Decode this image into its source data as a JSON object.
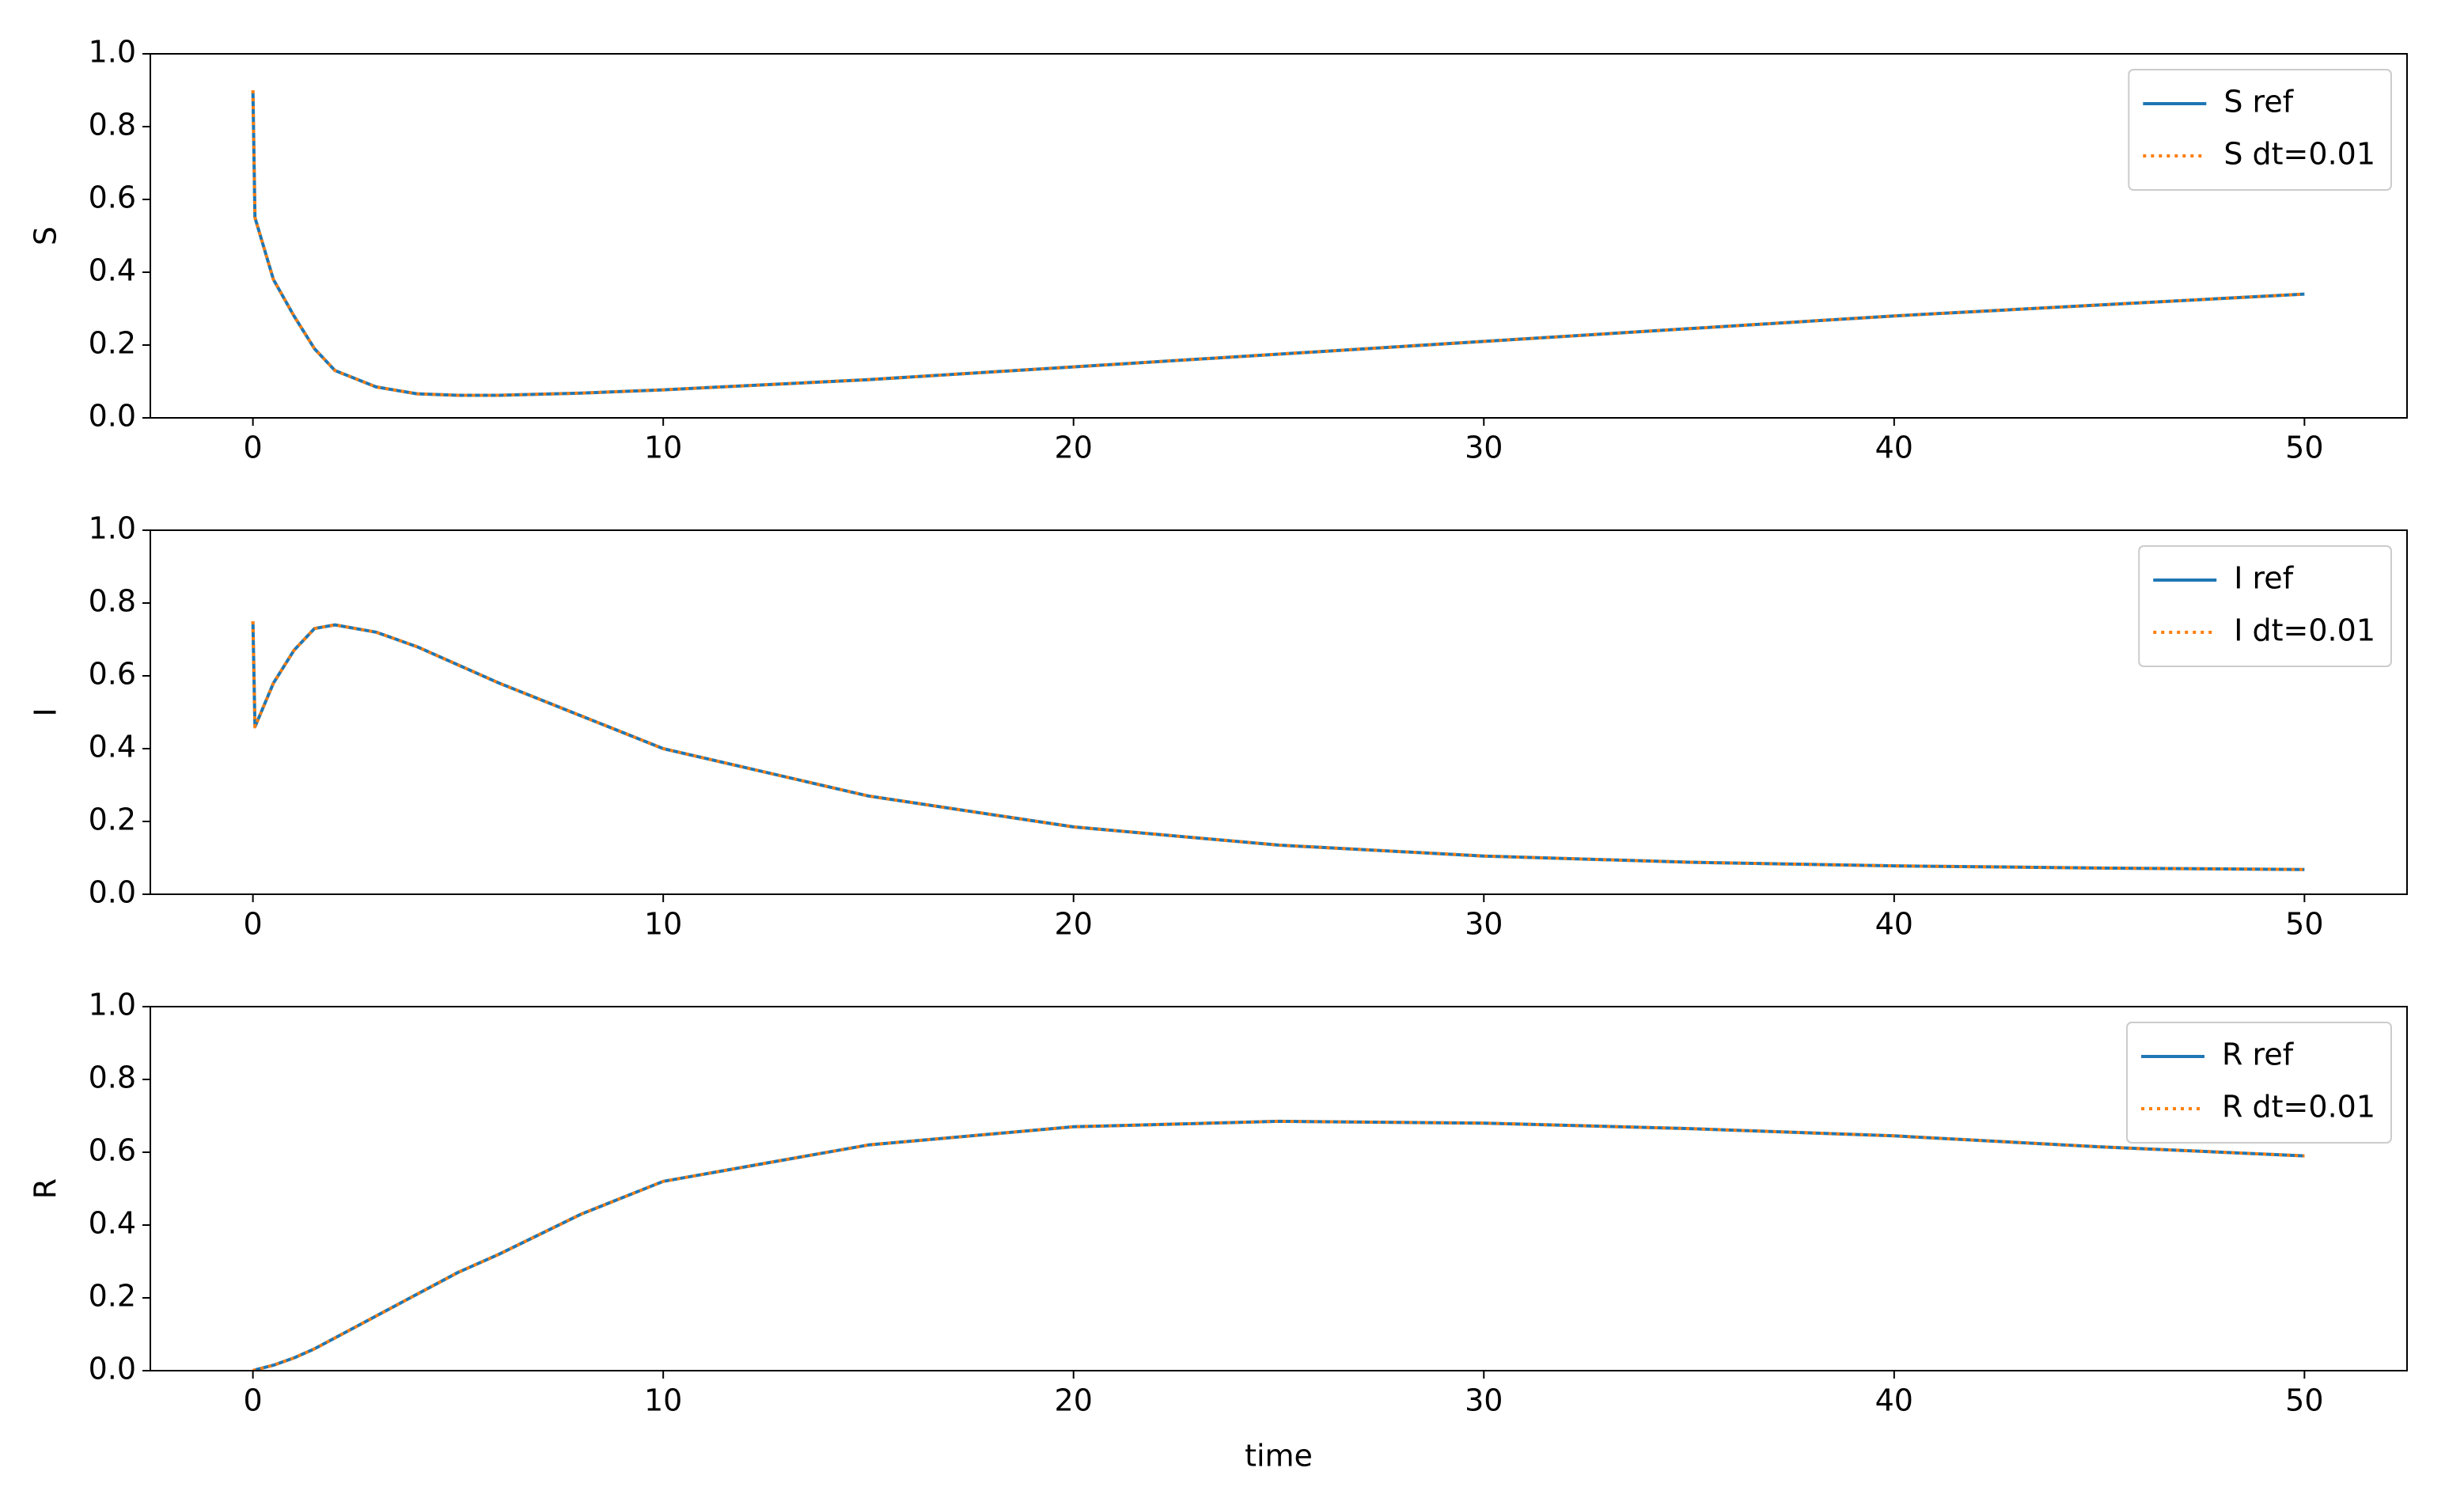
{
  "chart_data": [
    {
      "type": "line",
      "ylabel": "S",
      "x": [
        0,
        0.05,
        0.5,
        1,
        1.5,
        2,
        3,
        4,
        5,
        6,
        8,
        10,
        15,
        20,
        25,
        30,
        35,
        40,
        45,
        50
      ],
      "series": [
        {
          "name": "S ref",
          "color": "#1f77b4",
          "linestyle": "solid",
          "values": [
            0.9,
            0.55,
            0.38,
            0.28,
            0.19,
            0.13,
            0.085,
            0.066,
            0.062,
            0.062,
            0.068,
            0.077,
            0.105,
            0.14,
            0.175,
            0.21,
            0.245,
            0.28,
            0.31,
            0.34
          ]
        },
        {
          "name": "S dt=0.01",
          "color": "#ff7f0e",
          "linestyle": "dotted",
          "values": [
            0.9,
            0.55,
            0.38,
            0.28,
            0.19,
            0.13,
            0.085,
            0.066,
            0.062,
            0.062,
            0.068,
            0.077,
            0.105,
            0.14,
            0.175,
            0.21,
            0.245,
            0.28,
            0.31,
            0.34
          ]
        }
      ],
      "xlim": [
        -2.5,
        52.5
      ],
      "ylim": [
        0,
        1
      ],
      "xticks": [
        0,
        10,
        20,
        30,
        40,
        50
      ],
      "yticks": [
        {
          "value": 0,
          "label": "0.0"
        },
        {
          "value": 0.2,
          "label": "0.2"
        },
        {
          "value": 0.4,
          "label": "0.4"
        },
        {
          "value": 0.6,
          "label": "0.6"
        },
        {
          "value": 0.8,
          "label": "0.8"
        },
        {
          "value": 1,
          "label": "1.0"
        }
      ],
      "legend": "upper right"
    },
    {
      "type": "line",
      "ylabel": "I",
      "x": [
        0,
        0.05,
        0.5,
        1,
        1.5,
        2,
        3,
        4,
        5,
        6,
        8,
        10,
        15,
        20,
        25,
        30,
        35,
        40,
        45,
        50
      ],
      "series": [
        {
          "name": "I ref",
          "color": "#1f77b4",
          "linestyle": "solid",
          "values": [
            0.75,
            0.46,
            0.58,
            0.67,
            0.73,
            0.74,
            0.72,
            0.68,
            0.63,
            0.58,
            0.49,
            0.4,
            0.27,
            0.185,
            0.135,
            0.105,
            0.088,
            0.078,
            0.072,
            0.068
          ]
        },
        {
          "name": "I dt=0.01",
          "color": "#ff7f0e",
          "linestyle": "dotted",
          "values": [
            0.75,
            0.46,
            0.58,
            0.67,
            0.73,
            0.74,
            0.72,
            0.68,
            0.63,
            0.58,
            0.49,
            0.4,
            0.27,
            0.185,
            0.135,
            0.105,
            0.088,
            0.078,
            0.072,
            0.068
          ]
        }
      ],
      "xlim": [
        -2.5,
        52.5
      ],
      "ylim": [
        0,
        1
      ],
      "xticks": [
        0,
        10,
        20,
        30,
        40,
        50
      ],
      "yticks": [
        {
          "value": 0,
          "label": "0.0"
        },
        {
          "value": 0.2,
          "label": "0.2"
        },
        {
          "value": 0.4,
          "label": "0.4"
        },
        {
          "value": 0.6,
          "label": "0.6"
        },
        {
          "value": 0.8,
          "label": "0.8"
        },
        {
          "value": 1,
          "label": "1.0"
        }
      ],
      "legend": "upper right"
    },
    {
      "type": "line",
      "ylabel": "R",
      "xlabel": "time",
      "x": [
        0,
        0.05,
        0.5,
        1,
        1.5,
        2,
        3,
        4,
        5,
        6,
        8,
        10,
        15,
        20,
        25,
        30,
        35,
        40,
        45,
        50
      ],
      "series": [
        {
          "name": "R ref",
          "color": "#1f77b4",
          "linestyle": "solid",
          "values": [
            0,
            0.002,
            0.015,
            0.035,
            0.06,
            0.09,
            0.15,
            0.21,
            0.27,
            0.32,
            0.43,
            0.52,
            0.62,
            0.67,
            0.685,
            0.68,
            0.665,
            0.645,
            0.615,
            0.59
          ]
        },
        {
          "name": "R dt=0.01",
          "color": "#ff7f0e",
          "linestyle": "dotted",
          "values": [
            0,
            0.002,
            0.015,
            0.035,
            0.06,
            0.09,
            0.15,
            0.21,
            0.27,
            0.32,
            0.43,
            0.52,
            0.62,
            0.67,
            0.685,
            0.68,
            0.665,
            0.645,
            0.615,
            0.59
          ]
        }
      ],
      "xlim": [
        -2.5,
        52.5
      ],
      "ylim": [
        0,
        1
      ],
      "xticks": [
        0,
        10,
        20,
        30,
        40,
        50
      ],
      "yticks": [
        {
          "value": 0,
          "label": "0.0"
        },
        {
          "value": 0.2,
          "label": "0.2"
        },
        {
          "value": 0.4,
          "label": "0.4"
        },
        {
          "value": 0.6,
          "label": "0.6"
        },
        {
          "value": 0.8,
          "label": "0.8"
        },
        {
          "value": 1,
          "label": "1.0"
        }
      ],
      "legend": "upper right"
    }
  ]
}
